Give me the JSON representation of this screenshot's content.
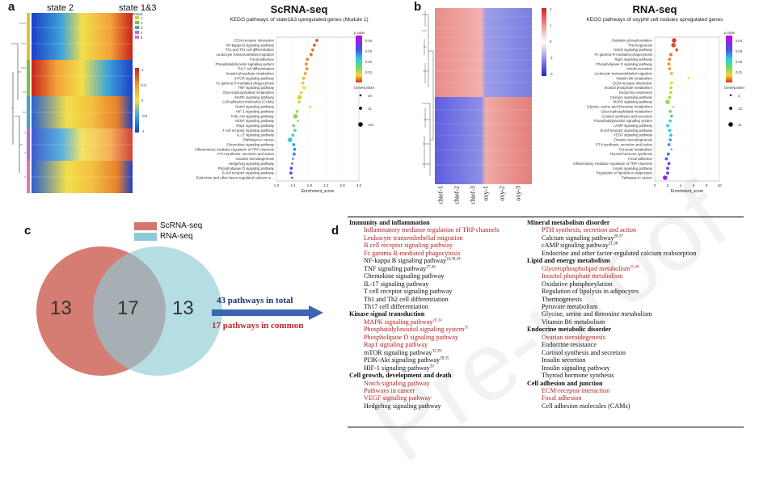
{
  "panels": {
    "a": {
      "label": "a",
      "heatmap_state_left": "state 2",
      "heatmap_state_right": "state 1&3",
      "module_legend_title": "Module",
      "module_legend_items": [
        "1",
        "2",
        "3",
        "4",
        "5"
      ],
      "module_colors": [
        "#d9c24a",
        "#7fbf3f",
        "#3fa7c9",
        "#b070d0",
        "#e07aa8"
      ],
      "heat_scale_labels": [
        "1",
        "0.5",
        "0",
        "-0.5",
        "-1"
      ],
      "title": "ScRNA-seq",
      "subtitle": "KEGG pathways of state1&3 upregulated genes (Module 1)",
      "pvalue_title": "p.value",
      "pvalue_ticks": [
        "0.04",
        "0.03",
        "0.02",
        "0.01"
      ],
      "genenumber_title": "GeneNumber",
      "genenumber_values": [
        "16",
        "41",
        "144"
      ]
    },
    "b": {
      "label": "b",
      "heat_scale_labels": [
        "2",
        "1",
        "0",
        "-1",
        "-2"
      ],
      "samples": [
        "chief-1",
        "chief-2",
        "chief-3",
        "oxy-1",
        "oxy-2",
        "oxy-3"
      ],
      "title": "RNA-seq",
      "subtitle": "KEGG pathways of oxyphil cell nodules upregulated genes",
      "pvalue_title": "p.value",
      "pvalue_ticks": [
        "0.04",
        "0.03",
        "0.02",
        "0.01"
      ],
      "genenumber_title": "GeneNumber",
      "genenumber_values": [
        "2",
        "13",
        "41"
      ]
    },
    "c": {
      "label": "c",
      "legend": [
        {
          "name": "ScRNA-seq",
          "color": "#d4766c"
        },
        {
          "name": "RNA-seq",
          "color": "#8ccbd6"
        }
      ],
      "left_only": "13",
      "overlap": "17",
      "right_only": "13",
      "arrow_color": "#3a66b3",
      "total_text": "43 pathways in total",
      "common_text": "17 pathways in common"
    },
    "d": {
      "label": "d"
    }
  },
  "chart_data": [
    {
      "type": "scatter",
      "title": "ScRNA-seq",
      "subtitle": "KEGG pathways of state1&3 upregulated genes (Module 1)",
      "xlabel": "Enrichment_score",
      "ylabel": "",
      "xlim": [
        1.0,
        3.0
      ],
      "x_ticks": [
        "1.0",
        "1.4",
        "1.8",
        "2.2",
        "2.6",
        "3.0"
      ],
      "categories": [
        "ECM-receptor interaction",
        "NF-kappa B signaling pathway",
        "Th1 and Th2 cell differentiation",
        "Leukocyte transendothelial migration",
        "Focal adhesion",
        "Phosphatidylinositol signaling system",
        "Th17 cell differentiation",
        "Inositol phosphate metabolism",
        "mTOR signaling pathway",
        "Fc gamma R-mediated phagocytosis",
        "TNF signaling pathway",
        "Glycerophospholipid metabolism",
        "MAPK signaling pathway",
        "Cell adhesion molecules (CAMs)",
        "Notch signaling pathway",
        "HIF-1 signaling pathway",
        "PI3K-Akt signaling pathway",
        "VEGF signaling pathway",
        "Rap1 signaling pathway",
        "T cell receptor signaling pathway",
        "IL-17 signaling pathway",
        "Pathways in cancer",
        "Chemokine signaling pathway",
        "Inflammatory mediator regulation of TRP channels",
        "PTH synthesis, secretion and action",
        "Ovarian steroidogenesis",
        "Hedgehog signaling pathway",
        "Phospholipase D signaling pathway",
        "B cell receptor signaling pathway",
        "Endocrine and other factor-regulated calcium re..."
      ],
      "x": [
        1.98,
        1.92,
        1.88,
        1.84,
        1.75,
        1.72,
        1.74,
        1.7,
        1.66,
        1.64,
        1.67,
        1.6,
        1.56,
        1.55,
        1.82,
        1.5,
        1.46,
        1.52,
        1.42,
        1.45,
        1.4,
        1.33,
        1.42,
        1.44,
        1.43,
        1.4,
        1.38,
        1.36,
        1.35,
        1.38
      ],
      "size": [
        41,
        41,
        41,
        41,
        41,
        41,
        41,
        41,
        41,
        41,
        41,
        41,
        144,
        41,
        16,
        41,
        144,
        16,
        41,
        41,
        41,
        144,
        41,
        41,
        41,
        16,
        16,
        41,
        41,
        16
      ],
      "pvalue": [
        0.002,
        0.003,
        0.004,
        0.004,
        0.005,
        0.006,
        0.006,
        0.007,
        0.008,
        0.009,
        0.01,
        0.012,
        0.013,
        0.014,
        0.015,
        0.017,
        0.019,
        0.02,
        0.022,
        0.024,
        0.027,
        0.03,
        0.033,
        0.035,
        0.036,
        0.037,
        0.039,
        0.041,
        0.043,
        0.045
      ]
    },
    {
      "type": "scatter",
      "title": "RNA-seq",
      "subtitle": "KEGG pathways of oxyphil cell nodules upregulated genes",
      "xlabel": "Enrichment_score",
      "ylabel": "",
      "xlim": [
        0,
        10
      ],
      "x_ticks": [
        "0",
        "2",
        "4",
        "6",
        "8",
        "10"
      ],
      "categories": [
        "Oxidative phosphorylation",
        "Thermogenesis",
        "Notch signaling pathway",
        "Fc gamma R-mediated phagocytosis",
        "Rap1 signaling pathway",
        "Phospholipase D signaling pathway",
        "Insulin secretion",
        "Leukocyte transendothelial migration",
        "Vitamin B6 metabolism",
        "ECM-receptor interaction",
        "Inositol phosphate metabolism",
        "Endocrine resistance",
        "Calcium signaling pathway",
        "MAPK signaling pathway",
        "Glycine, serine and threonine metabolism",
        "Glycerophospholipid metabolism",
        "Cortisol synthesis and secretion",
        "Phosphatidylinositol signaling system",
        "cAMP signaling pathway",
        "B cell receptor signaling pathway",
        "VEGF signaling pathway",
        "Ovarian steroidogenesis",
        "PTH synthesis, secretion and action",
        "Pyruvate metabolism",
        "Thyroid hormone synthesis",
        "Focal adhesion",
        "Inflammatory mediator regulation of TRP channels",
        "Insulin signaling pathway",
        "Regulation of lipolysis in adipocytes",
        "Pathways in cancer"
      ],
      "x": [
        3.0,
        2.9,
        3.4,
        2.5,
        2.3,
        2.2,
        2.3,
        2.6,
        5.2,
        2.6,
        2.5,
        2.5,
        2.3,
        2.0,
        2.9,
        2.4,
        2.6,
        2.4,
        2.0,
        2.3,
        2.5,
        2.4,
        2.2,
        2.6,
        2.1,
        1.8,
        2.2,
        2.0,
        2.0,
        1.6
      ],
      "size": [
        41,
        41,
        13,
        13,
        13,
        13,
        13,
        13,
        2,
        13,
        13,
        13,
        13,
        41,
        2,
        13,
        13,
        13,
        13,
        13,
        13,
        13,
        13,
        2,
        13,
        13,
        13,
        13,
        13,
        41
      ],
      "pvalue": [
        0.001,
        0.002,
        0.003,
        0.004,
        0.005,
        0.006,
        0.007,
        0.008,
        0.009,
        0.012,
        0.014,
        0.016,
        0.017,
        0.018,
        0.02,
        0.022,
        0.024,
        0.026,
        0.028,
        0.03,
        0.031,
        0.032,
        0.034,
        0.035,
        0.037,
        0.039,
        0.041,
        0.042,
        0.044,
        0.046
      ]
    }
  ],
  "table": {
    "left": [
      {
        "kind": "header",
        "text": "Immunity and inflammation"
      },
      {
        "kind": "red",
        "text": "Inflammatory mediator regulation of TRP channels"
      },
      {
        "kind": "red",
        "text": "Leukocyte transendothelial migration"
      },
      {
        "kind": "red",
        "text": "B cell receptor signaling pathway"
      },
      {
        "kind": "red",
        "text": "Fc gamma R-mediated phagocytosis"
      },
      {
        "kind": "item",
        "text": "NF-kappa B signaling pathway",
        "ref": "24,30,34"
      },
      {
        "kind": "item",
        "text": "TNF signaling pathway",
        "ref": "27,36"
      },
      {
        "kind": "item",
        "text": "Chemokine signaling pathway"
      },
      {
        "kind": "item",
        "text": "IL-17 signaling pathway"
      },
      {
        "kind": "item",
        "text": "T cell receptor signaling pathway"
      },
      {
        "kind": "item",
        "text": "Th1 and Th2 cell differentiation"
      },
      {
        "kind": "item",
        "text": "Th17 cell differentiation"
      },
      {
        "kind": "header",
        "text": "Kinase signal transduction"
      },
      {
        "kind": "red",
        "text": "MAPK signaling pathway",
        "ref": "26,34"
      },
      {
        "kind": "red",
        "text": "Phosphatidylinositol signaling system",
        "ref": "35"
      },
      {
        "kind": "red",
        "text": "Phospholipase D signaling pathway"
      },
      {
        "kind": "red",
        "text": "Rap1 signaling pathway"
      },
      {
        "kind": "item",
        "text": "mTOR signaling pathway",
        "ref": "32,39"
      },
      {
        "kind": "item",
        "text": "PI3K-Akt signaling pathway",
        "ref": "28,35"
      },
      {
        "kind": "item",
        "text": "HIF-1 signaling pathway",
        "ref": "33"
      },
      {
        "kind": "header",
        "text": "Cell growth, development and death"
      },
      {
        "kind": "red",
        "text": "Notch signaling pathway"
      },
      {
        "kind": "red",
        "text": "Pathways in cancer"
      },
      {
        "kind": "red",
        "text": "VEGF signaling pathway"
      },
      {
        "kind": "item",
        "text": "Hedgehog signaling pathway"
      }
    ],
    "right": [
      {
        "kind": "header",
        "text": "Mineral metabolism disorder"
      },
      {
        "kind": "red",
        "text": "PTH synthesis, secretion and action"
      },
      {
        "kind": "item",
        "text": "Calcium signaling pathway",
        "ref": "28,37"
      },
      {
        "kind": "item",
        "text": "cAMP signaling pathway",
        "ref": "31,38"
      },
      {
        "kind": "item",
        "text": "Endocrine and other factor-regulated calcium reabsorption"
      },
      {
        "kind": "header",
        "text": "Lipid and energy metabolism"
      },
      {
        "kind": "red",
        "text": "Glycerophospholipid metabolism",
        "ref": "25,40"
      },
      {
        "kind": "red",
        "text": "Inositol phosphate metabolism"
      },
      {
        "kind": "item",
        "text": "Oxidative phosphorylation"
      },
      {
        "kind": "item",
        "text": "Regulation of lipolysis in adipocytes"
      },
      {
        "kind": "item",
        "text": "Thermogenesis"
      },
      {
        "kind": "item",
        "text": "Pyruvate metabolism"
      },
      {
        "kind": "item",
        "text": "Glycine, serine and threonine metabolism"
      },
      {
        "kind": "item",
        "text": "Vitamin B6 metabolism"
      },
      {
        "kind": "header",
        "text": "Endocrine metabolic disorder"
      },
      {
        "kind": "red",
        "text": "Ovarian steroidogenesis"
      },
      {
        "kind": "item",
        "text": "Endocrine resistance"
      },
      {
        "kind": "item",
        "text": "Cortisol synthesis and secretion"
      },
      {
        "kind": "item",
        "text": "Insulin secretion"
      },
      {
        "kind": "item",
        "text": "Insulin signaling pathway"
      },
      {
        "kind": "item",
        "text": "Thyroid hormone synthesis"
      },
      {
        "kind": "header",
        "text": "Cell adhesion and junction"
      },
      {
        "kind": "red",
        "text": "ECM-receptor interaction"
      },
      {
        "kind": "red",
        "text": "Focal adhesion"
      },
      {
        "kind": "item",
        "text": "Cell adhesion molecules (CAMs)"
      }
    ]
  }
}
